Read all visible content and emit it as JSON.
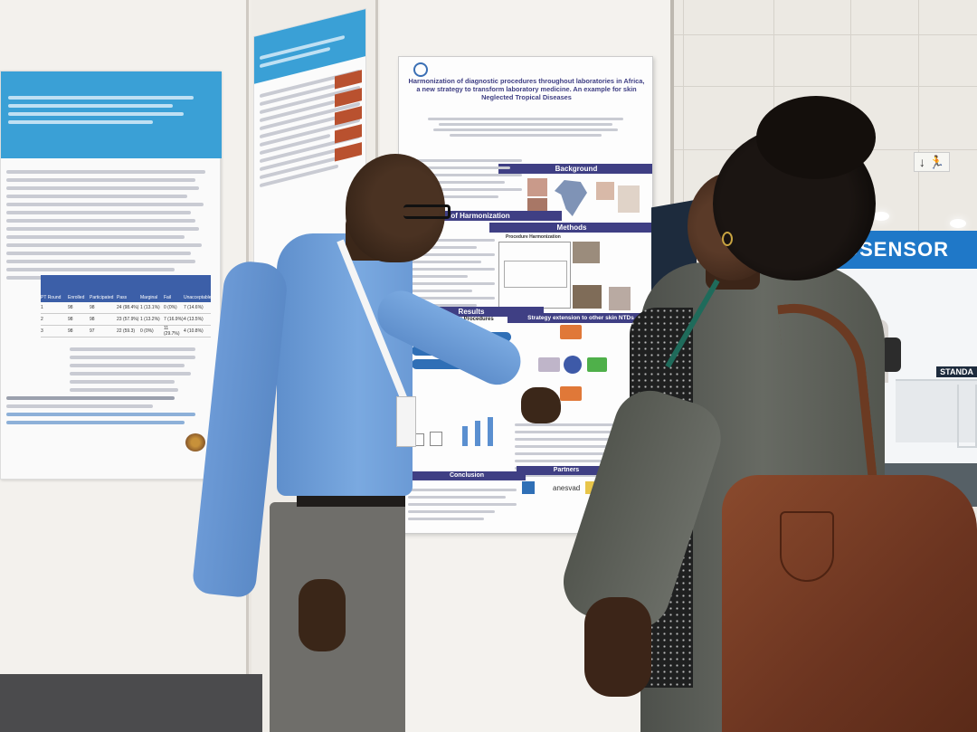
{
  "scene": {
    "colors": {
      "wall": "#eeebe6",
      "poster_header": "#3f3f84",
      "poster_accent_blue": "#3aa0d6",
      "biosensor_blue": "#1f78c8",
      "shirt_blue": "#6e9fd8",
      "bag_brown": "#7a4128",
      "jacket_grey": "#5b5d57"
    },
    "icons": [
      "exit-sign-icon",
      "who-logo-icon",
      "kenya-seal-icon",
      "arrow-down-icon",
      "running-person-icon"
    ]
  },
  "left_poster": {
    "table_headers": [
      "PT Round",
      "Enrolled",
      "Participated",
      "Pass",
      "Marginal",
      "Fail",
      "Unacceptable"
    ],
    "table_rows": [
      [
        "1",
        "98",
        "98",
        "24 (98.4%)",
        "1 (13.1%)",
        "0 (0%)",
        "7 (14.6%)"
      ],
      [
        "2",
        "98",
        "98",
        "23 (57.9%)",
        "1 (13.2%)",
        "7 (16.9%)",
        "4 (13.5%)"
      ],
      [
        "3",
        "98",
        "97",
        "22 (59.3)",
        "0 (0%)",
        "11 (29.7%)",
        "4 (10.8%)"
      ]
    ]
  },
  "main_poster": {
    "title": "Harmonization of diagnostic procedures throughout laboratories in Africa, a new strategy to transform laboratory medicine. An example for skin Neglected Tropical Diseases",
    "sections": {
      "background": "Background",
      "harmonization": "of Harmonization",
      "methods": "Methods",
      "procedure": "Procedure Harmonization",
      "results": "Results",
      "sop": "Standard Operating Procedures",
      "strategy": "Strategy extension to other skin NTDs",
      "conclusion": "Conclusion",
      "partners": "Partners"
    },
    "partner_logos": [
      "anesvad"
    ]
  },
  "booth_sign": {
    "text": "BIOSENSOR",
    "sub": "STANDA"
  }
}
